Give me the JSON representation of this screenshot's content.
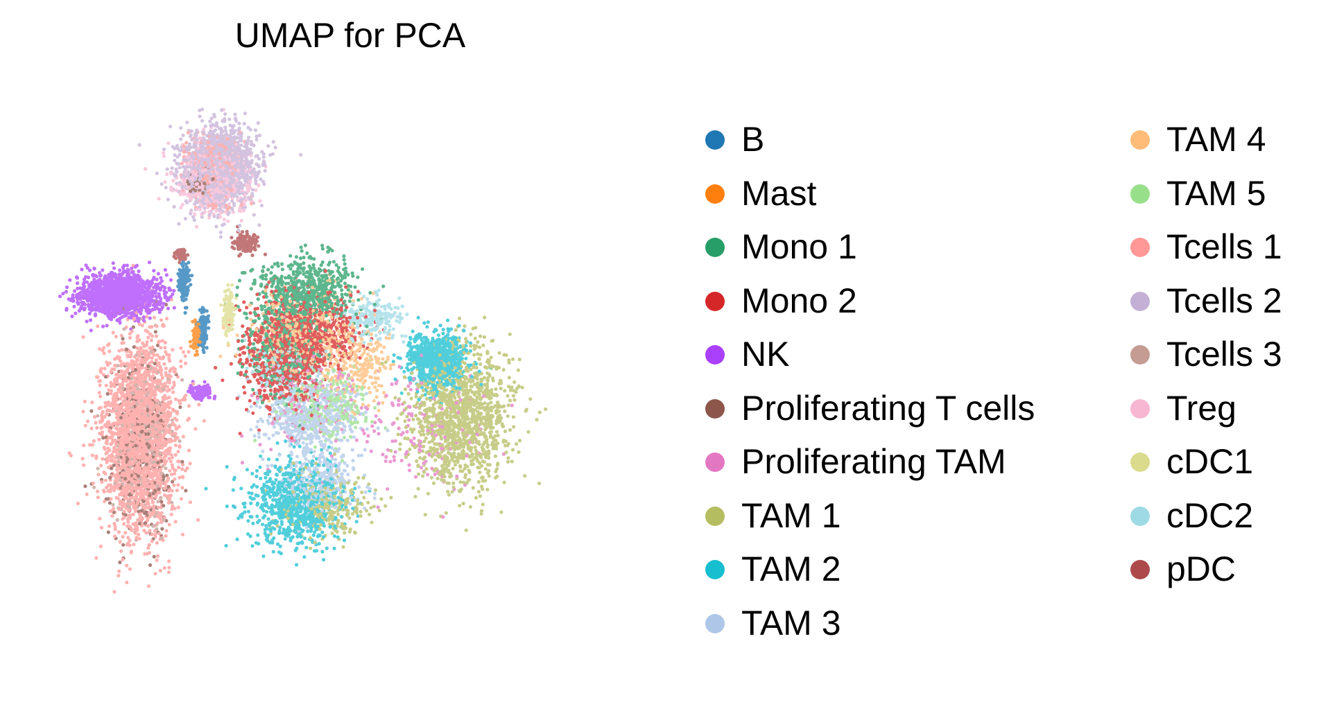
{
  "chart_data": {
    "type": "scatter",
    "title": "UMAP for PCA",
    "xlabel": "",
    "ylabel": "",
    "axes_visible": false,
    "grid": false,
    "legend_placement": "right, two columns",
    "point_alpha": 0.75,
    "clusters": [
      {
        "name": "B",
        "color": "#1f77b4",
        "regions": [
          [
            0.245,
            0.365,
            0.008,
            0.03,
            0.05
          ],
          [
            0.275,
            0.44,
            0.006,
            0.025,
            0.05
          ]
        ]
      },
      {
        "name": "Mast",
        "color": "#ff7f0e",
        "regions": [
          [
            0.265,
            0.45,
            0.006,
            0.02,
            0.03
          ]
        ]
      },
      {
        "name": "Mono 1",
        "color": "#279e68",
        "regions": [
          [
            0.435,
            0.38,
            0.07,
            0.05,
            0.25
          ],
          [
            0.4,
            0.47,
            0.055,
            0.07,
            0.15
          ]
        ]
      },
      {
        "name": "Mono 2",
        "color": "#d62728",
        "regions": [
          [
            0.4,
            0.48,
            0.06,
            0.08,
            0.3
          ],
          [
            0.46,
            0.44,
            0.06,
            0.05,
            0.15
          ]
        ]
      },
      {
        "name": "NK",
        "color": "#aa40fc",
        "regions": [
          [
            0.145,
            0.385,
            0.055,
            0.03,
            0.6
          ],
          [
            0.27,
            0.54,
            0.015,
            0.01,
            0.05
          ]
        ]
      },
      {
        "name": "Proliferating T cells",
        "color": "#8c564b",
        "regions": [
          [
            0.175,
            0.62,
            0.045,
            0.14,
            0.12
          ],
          [
            0.27,
            0.2,
            0.02,
            0.02,
            0.03
          ]
        ]
      },
      {
        "name": "Proliferating TAM",
        "color": "#e377c2",
        "regions": [
          [
            0.62,
            0.6,
            0.09,
            0.09,
            0.06
          ],
          [
            0.45,
            0.55,
            0.08,
            0.08,
            0.05
          ]
        ]
      },
      {
        "name": "TAM 1",
        "color": "#b5bd61",
        "regions": [
          [
            0.68,
            0.58,
            0.07,
            0.1,
            0.5
          ],
          [
            0.47,
            0.72,
            0.06,
            0.05,
            0.1
          ]
        ]
      },
      {
        "name": "TAM 2",
        "color": "#17becf",
        "regions": [
          [
            0.64,
            0.49,
            0.04,
            0.04,
            0.3
          ],
          [
            0.42,
            0.72,
            0.07,
            0.06,
            0.3
          ]
        ]
      },
      {
        "name": "TAM 3",
        "color": "#aec7e8",
        "regions": [
          [
            0.44,
            0.58,
            0.07,
            0.05,
            0.2
          ],
          [
            0.46,
            0.68,
            0.06,
            0.05,
            0.1
          ]
        ]
      },
      {
        "name": "TAM 4",
        "color": "#ffbb78",
        "regions": [
          [
            0.43,
            0.45,
            0.08,
            0.07,
            0.15
          ],
          [
            0.52,
            0.5,
            0.05,
            0.05,
            0.08
          ]
        ]
      },
      {
        "name": "TAM 5",
        "color": "#98df8a",
        "regions": [
          [
            0.47,
            0.56,
            0.06,
            0.05,
            0.1
          ]
        ]
      },
      {
        "name": "Tcells 1",
        "color": "#ff9896",
        "regions": [
          [
            0.175,
            0.61,
            0.055,
            0.14,
            0.9
          ],
          [
            0.29,
            0.18,
            0.04,
            0.05,
            0.15
          ]
        ]
      },
      {
        "name": "Tcells 2",
        "color": "#c5b0d5",
        "regions": [
          [
            0.3,
            0.18,
            0.055,
            0.06,
            0.55
          ]
        ]
      },
      {
        "name": "Tcells 3",
        "color": "#c49c94",
        "regions": [
          [
            0.18,
            0.62,
            0.045,
            0.12,
            0.1
          ]
        ]
      },
      {
        "name": "Treg",
        "color": "#f7b6d2",
        "regions": [
          [
            0.29,
            0.2,
            0.05,
            0.05,
            0.2
          ]
        ]
      },
      {
        "name": "cDC1",
        "color": "#dbdb8d",
        "regions": [
          [
            0.315,
            0.41,
            0.008,
            0.03,
            0.05
          ]
        ]
      },
      {
        "name": "cDC2",
        "color": "#9edae5",
        "regions": [
          [
            0.54,
            0.42,
            0.04,
            0.03,
            0.08
          ],
          [
            0.4,
            0.5,
            0.05,
            0.05,
            0.05
          ]
        ]
      },
      {
        "name": "pDC",
        "color": "#ad494a",
        "regions": [
          [
            0.34,
            0.3,
            0.018,
            0.015,
            0.05
          ],
          [
            0.24,
            0.32,
            0.008,
            0.01,
            0.02
          ]
        ]
      }
    ]
  }
}
